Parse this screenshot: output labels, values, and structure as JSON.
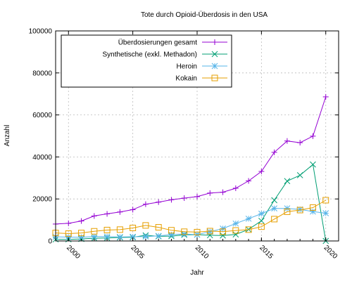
{
  "chart_data": {
    "type": "line",
    "title": "Tote durch Opioid-Überdosis in den USA",
    "xlabel": "Jahr",
    "ylabel": "Anzahl",
    "xlim": [
      1999,
      2021
    ],
    "ylim": [
      0,
      100000
    ],
    "x_ticks": [
      2000,
      2005,
      2010,
      2015,
      2020
    ],
    "y_ticks": [
      0,
      20000,
      40000,
      60000,
      80000,
      100000
    ],
    "grid": true,
    "legend_position": "top-left",
    "x": [
      1999,
      2000,
      2001,
      2002,
      2003,
      2004,
      2005,
      2006,
      2007,
      2008,
      2009,
      2010,
      2011,
      2012,
      2013,
      2014,
      2015,
      2016,
      2017,
      2018,
      2019,
      2020
    ],
    "series": [
      {
        "name": "Überdosierungen gesamt",
        "color": "#9400d3",
        "marker": "plus",
        "values": [
          8050,
          8400,
          9500,
          11900,
          12900,
          13800,
          14900,
          17500,
          18500,
          19600,
          20400,
          21100,
          22800,
          23200,
          25100,
          28600,
          33100,
          42200,
          47600,
          46800,
          49900,
          68600
        ]
      },
      {
        "name": "Synthetische (exkl. Methadon)",
        "color": "#009e73",
        "marker": "cross",
        "values": [
          730,
          780,
          960,
          1300,
          1400,
          1660,
          1740,
          2700,
          2200,
          2300,
          2900,
          3000,
          2700,
          2600,
          3100,
          5500,
          9600,
          19400,
          28500,
          31300,
          36400,
          0
        ]
      },
      {
        "name": "Heroin",
        "color": "#56b4e9",
        "marker": "asterisk",
        "values": [
          1960,
          1840,
          1780,
          2100,
          2080,
          1880,
          2000,
          2100,
          2400,
          3000,
          3300,
          3000,
          4400,
          5900,
          8300,
          10600,
          13000,
          15500,
          15500,
          15000,
          14000,
          13200
        ]
      },
      {
        "name": "Kokain",
        "color": "#e69f00",
        "marker": "square",
        "values": [
          3800,
          3500,
          3800,
          4600,
          5200,
          5400,
          6200,
          7400,
          6500,
          5100,
          4400,
          4200,
          4700,
          4400,
          5000,
          5400,
          6800,
          10400,
          13900,
          14700,
          15900,
          19400
        ]
      }
    ]
  }
}
